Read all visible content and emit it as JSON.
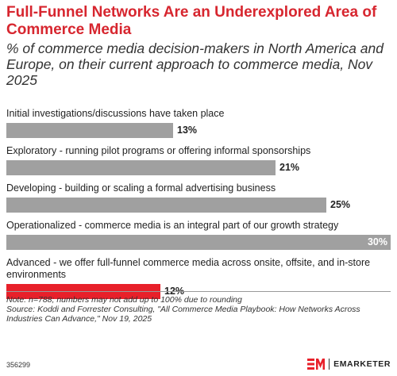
{
  "header": {
    "title": "Full-Funnel Networks Are an Underexplored Area of Commerce Media",
    "subtitle": "% of commerce media decision-makers in North America and Europe, on their current approach to commerce media, Nov 2025"
  },
  "chart_data": {
    "type": "bar",
    "orientation": "horizontal",
    "categories": [
      "Initial investigations/discussions have taken place",
      "Exploratory - running pilot programs or offering informal sponsorships",
      "Developing - building or scaling a formal advertising business",
      "Operationalized - commerce media is an integral part of our growth strategy",
      "Advanced - we offer full-funnel commerce media across onsite, offsite, and in-store environments"
    ],
    "values": [
      13,
      21,
      25,
      30,
      12
    ],
    "value_labels": [
      "13%",
      "21%",
      "25%",
      "30%",
      "12%"
    ],
    "highlight_index": 4,
    "xlim": [
      0,
      30
    ],
    "grid": false,
    "colors": {
      "bar": "#a0a0a0",
      "highlight": "#e8202a"
    }
  },
  "footer": {
    "note": "Note: n=788; numbers may not add up to 100% due to rounding",
    "source": "Source: Koddi and Forrester Consulting, \"All Commerce Media Playbook: How Networks Across Industries Can Advance,\" Nov 19, 2025",
    "chart_id": "356299",
    "brand": "EMARKETER",
    "logo_icon": "em-logo-icon"
  }
}
